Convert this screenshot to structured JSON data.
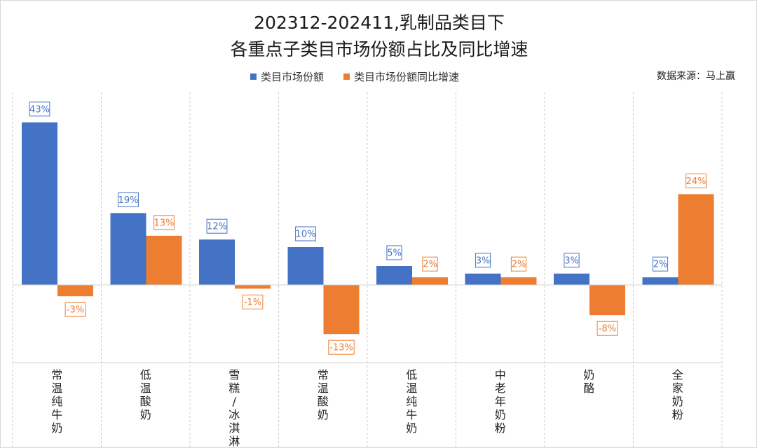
{
  "chart_data": {
    "type": "bar",
    "title_line1": "202312-202411,乳制品类目下",
    "title_line2": "各重点子类目市场份额占比及同比增速",
    "source": "数据来源：马上赢",
    "categories": [
      "常温纯牛奶",
      "低温酸奶",
      "雪糕/冰淇淋",
      "常温酸奶",
      "低温纯牛奶",
      "中老年奶粉",
      "奶酪",
      "全家奶粉"
    ],
    "series": [
      {
        "name": "类目市场份额",
        "color": "#4472c4",
        "values": [
          43,
          19,
          12,
          10,
          5,
          3,
          3,
          2
        ],
        "labels": [
          "43%",
          "19%",
          "12%",
          "10%",
          "5%",
          "3%",
          "3%",
          "2%"
        ]
      },
      {
        "name": "类目市场份额同比增速",
        "color": "#ed7d31",
        "values": [
          -3,
          13,
          -1,
          -13,
          2,
          2,
          -8,
          24
        ],
        "labels": [
          "-3%",
          "13%",
          "-1%",
          "-13%",
          "2%",
          "2%",
          "-8%",
          "24%"
        ]
      }
    ],
    "ylim": [
      -20,
      50
    ],
    "grid": false,
    "legend": "top-center"
  }
}
